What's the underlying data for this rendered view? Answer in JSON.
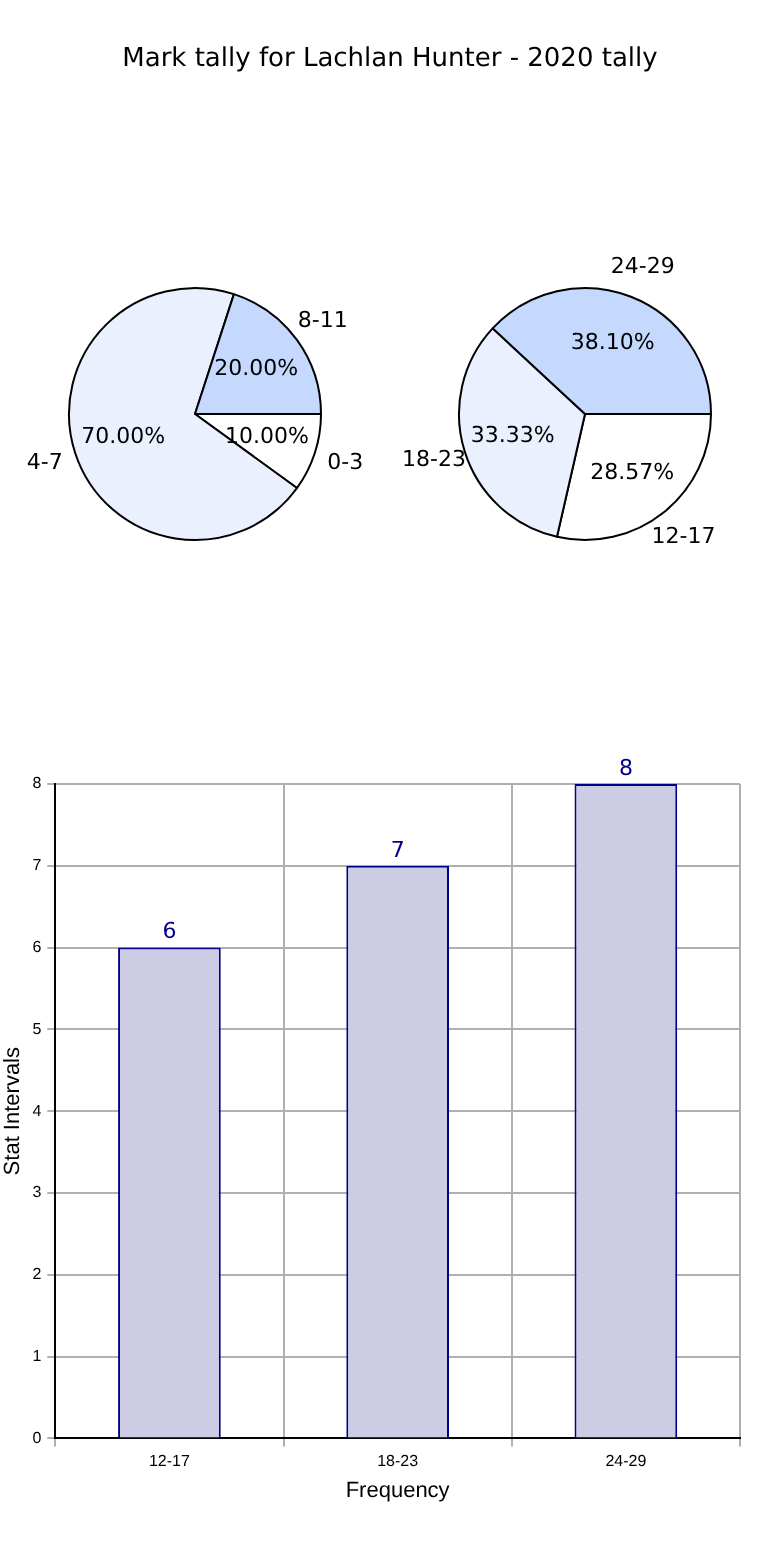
{
  "chart_data": [
    {
      "type": "pie",
      "title": "Mark tally for Lachlan Hunter - 2020 tally",
      "categories": [
        "0-3",
        "4-7",
        "8-11"
      ],
      "values": [
        10,
        70,
        20
      ],
      "colors": [
        "#ffffff",
        "#eaf0fe",
        "#c5d9fe"
      ],
      "value_labels": [
        "10.00%",
        "70.00%",
        "20.00%"
      ]
    },
    {
      "type": "pie",
      "categories": [
        "12-17",
        "18-23",
        "24-29"
      ],
      "values": [
        28.57,
        33.33,
        38.1
      ],
      "colors": [
        "#ffffff",
        "#eaf0fe",
        "#c5d9fe"
      ],
      "value_labels": [
        "28.57%",
        "33.33%",
        "38.10%"
      ]
    },
    {
      "type": "bar",
      "categories": [
        "12-17",
        "18-23",
        "24-29"
      ],
      "values": [
        6,
        7,
        8
      ],
      "color": "#cccce5",
      "xlabel": "Frequency",
      "ylabel": "Stat Intervals",
      "ylim": [
        0,
        8
      ],
      "yticks": [
        0,
        1,
        2,
        3,
        4,
        5,
        6,
        7,
        8
      ],
      "grid": true,
      "data_labels": true
    }
  ]
}
